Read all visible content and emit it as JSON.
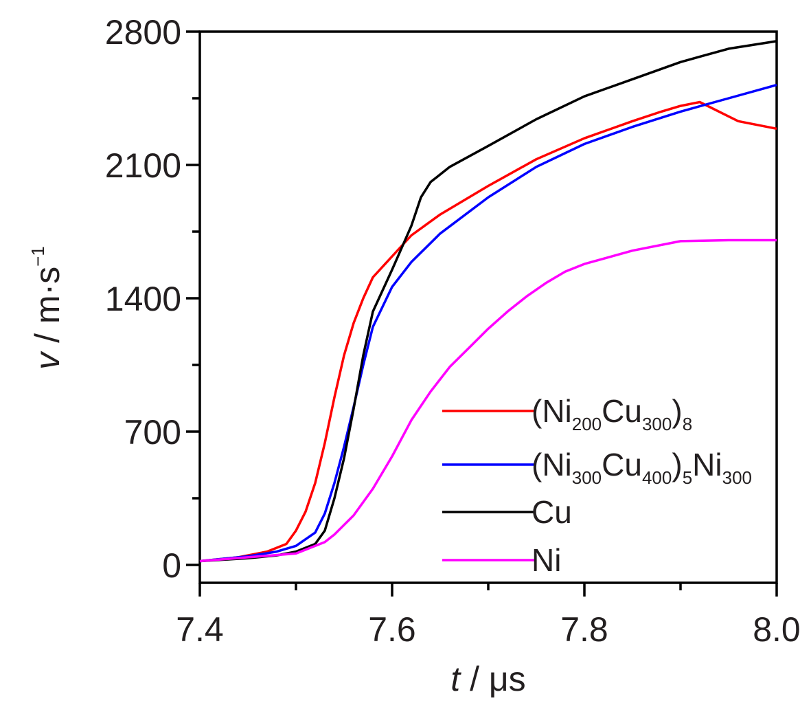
{
  "chart_data": {
    "type": "line",
    "xlabel": {
      "symbol": "t",
      "unit": " / μs"
    },
    "ylabel": {
      "symbol": "v",
      "unit": " / m·s",
      "exp": "−1"
    },
    "xlim": [
      7.4,
      8.0
    ],
    "ylim": [
      -90,
      2800
    ],
    "x_ticks": [
      7.4,
      7.6,
      7.8,
      8.0
    ],
    "x_tick_labels": [
      "7.4",
      "7.6",
      "7.8",
      "8.0"
    ],
    "x_minor_ticks": [
      7.5,
      7.7,
      7.9
    ],
    "y_ticks": [
      0,
      700,
      1400,
      2100,
      2800
    ],
    "y_tick_labels": [
      "0",
      "700",
      "1400",
      "2100",
      "2800"
    ],
    "y_minor_ticks": [
      350,
      1050,
      1750,
      2450
    ],
    "grid": false,
    "legend_position": "lower-right",
    "series": [
      {
        "key": "ni200cu300",
        "name": "(Ni200Cu300)8",
        "legend_parts": [
          "(Ni",
          "200",
          "Cu",
          "300",
          ")",
          "8",
          ""
        ],
        "color": "#ff0000",
        "x": [
          7.4,
          7.44,
          7.47,
          7.49,
          7.5,
          7.51,
          7.52,
          7.53,
          7.54,
          7.55,
          7.56,
          7.57,
          7.58,
          7.6,
          7.62,
          7.65,
          7.7,
          7.75,
          7.8,
          7.85,
          7.88,
          7.9,
          7.92,
          7.94,
          7.96,
          7.98,
          8.0
        ],
        "y": [
          20,
          40,
          70,
          110,
          180,
          280,
          430,
          640,
          880,
          1100,
          1270,
          1400,
          1510,
          1620,
          1730,
          1840,
          1990,
          2130,
          2240,
          2330,
          2380,
          2410,
          2430,
          2380,
          2330,
          2310,
          2290
        ]
      },
      {
        "key": "ni300cu400",
        "name": "(Ni300Cu400)5Ni300",
        "legend_parts": [
          "(Ni",
          "300",
          "Cu",
          "400",
          ")",
          "5",
          "Ni",
          "300"
        ],
        "color": "#0000ff",
        "x": [
          7.4,
          7.45,
          7.48,
          7.5,
          7.52,
          7.53,
          7.54,
          7.55,
          7.56,
          7.57,
          7.58,
          7.6,
          7.62,
          7.65,
          7.7,
          7.75,
          7.8,
          7.85,
          7.9,
          7.95,
          8.0
        ],
        "y": [
          20,
          45,
          70,
          100,
          170,
          270,
          430,
          620,
          830,
          1050,
          1250,
          1460,
          1590,
          1740,
          1930,
          2090,
          2210,
          2300,
          2380,
          2450,
          2520
        ]
      },
      {
        "key": "cu",
        "name": "Cu",
        "legend_parts": [
          "Cu"
        ],
        "color": "#000000",
        "x": [
          7.4,
          7.45,
          7.48,
          7.5,
          7.52,
          7.53,
          7.54,
          7.55,
          7.56,
          7.57,
          7.58,
          7.6,
          7.62,
          7.63,
          7.64,
          7.66,
          7.7,
          7.75,
          7.8,
          7.85,
          7.9,
          7.95,
          8.0
        ],
        "y": [
          20,
          35,
          50,
          70,
          110,
          180,
          350,
          560,
          820,
          1100,
          1330,
          1550,
          1780,
          1930,
          2010,
          2090,
          2200,
          2340,
          2460,
          2550,
          2640,
          2710,
          2750
        ]
      },
      {
        "key": "ni",
        "name": "Ni",
        "legend_parts": [
          "Ni"
        ],
        "color": "#ff00ff",
        "x": [
          7.4,
          7.45,
          7.5,
          7.53,
          7.54,
          7.56,
          7.58,
          7.6,
          7.62,
          7.64,
          7.66,
          7.68,
          7.7,
          7.72,
          7.74,
          7.76,
          7.78,
          7.8,
          7.85,
          7.9,
          7.95,
          8.0
        ],
        "y": [
          20,
          40,
          60,
          120,
          160,
          260,
          400,
          570,
          760,
          910,
          1040,
          1140,
          1240,
          1330,
          1410,
          1480,
          1540,
          1580,
          1650,
          1700,
          1705,
          1705
        ]
      }
    ]
  }
}
